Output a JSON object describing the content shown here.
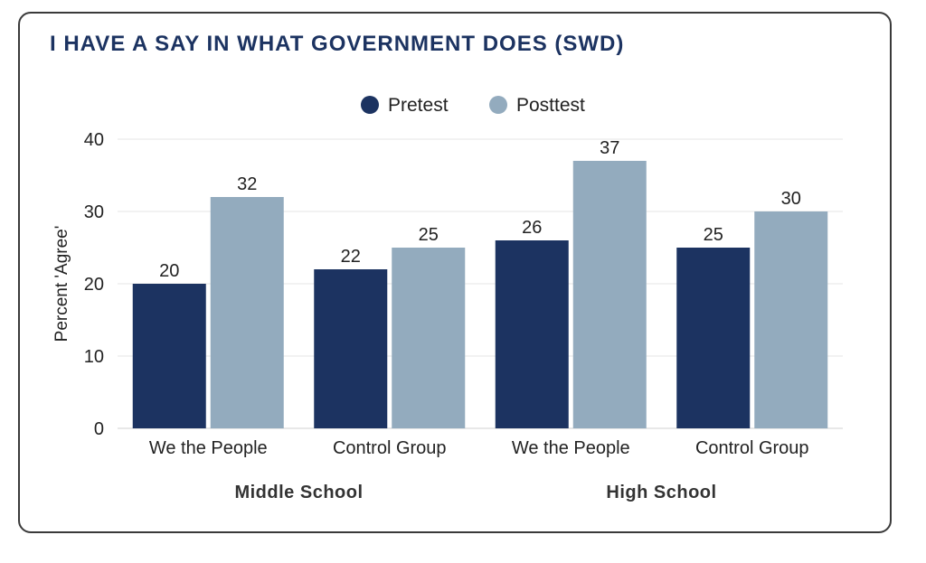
{
  "chart_data": {
    "type": "bar",
    "title": "I HAVE A SAY IN WHAT GOVERNMENT DOES (SWD)",
    "ylabel": "Percent 'Agree'",
    "xlabel": "",
    "ylim": [
      0,
      40
    ],
    "yticks": [
      0,
      10,
      20,
      30,
      40
    ],
    "grid": true,
    "legend_position": "top-center",
    "categories": [
      "We the People",
      "Control Group",
      "We the People",
      "Control Group"
    ],
    "groups": [
      {
        "label": "Middle School",
        "categories": [
          "We the People",
          "Control Group"
        ]
      },
      {
        "label": "High School",
        "categories": [
          "We the People",
          "Control Group"
        ]
      }
    ],
    "series": [
      {
        "name": "Pretest",
        "color": "#1c3361",
        "values": [
          20,
          22,
          26,
          25
        ]
      },
      {
        "name": "Posttest",
        "color": "#93abbe",
        "values": [
          32,
          25,
          37,
          30
        ]
      }
    ]
  }
}
